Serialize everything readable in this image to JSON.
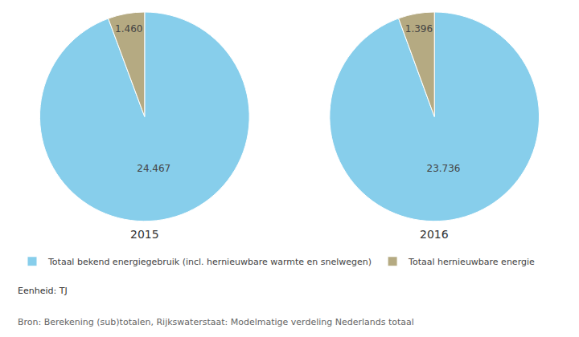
{
  "chart_data": [
    {
      "type": "pie",
      "title": "2015",
      "categories": [
        "Totaal bekend energiegebruik (incl. hernieuwbare warmte en snelwegen)",
        "Totaal hernieuwbare energie"
      ],
      "values": [
        24.467,
        1.46
      ],
      "value_labels": [
        "24.467",
        "1.460"
      ],
      "colors": [
        "#87CEEB",
        "#B5AA82"
      ],
      "data_labels": true,
      "legend": "lower left",
      "annotations": [
        "Eenheid: TJ",
        "Bron: Berekening (sub)totalen, Rijkswaterstaat: Modelmatige verdeling Nederlands totaal"
      ]
    },
    {
      "type": "pie",
      "title": "2016",
      "categories": [
        "Totaal bekend energiegebruik (incl. hernieuwbare warmte en snelwegen)",
        "Totaal hernieuwbare energie"
      ],
      "values": [
        23.736,
        1.396
      ],
      "value_labels": [
        "23.736",
        "1.396"
      ],
      "colors": [
        "#87CEEB",
        "#B5AA82"
      ],
      "data_labels": true,
      "legend": "lower left"
    }
  ]
}
